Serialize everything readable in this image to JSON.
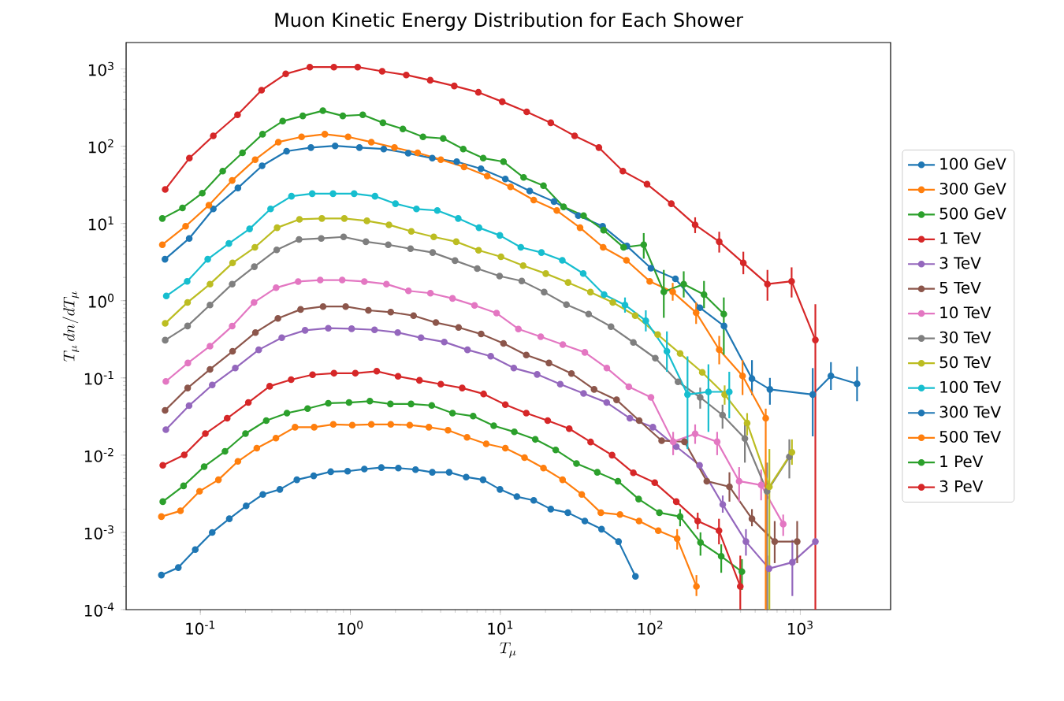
{
  "chart_data": {
    "type": "line",
    "title": "Muon Kinetic Energy Distribution for Each Shower",
    "xlabel": "T_\\mu",
    "ylabel": "T_\\mu \\, dn/dT_\\mu",
    "log": "xy",
    "marker": "circle",
    "line_style": "solid",
    "legend": "right",
    "xlim": [
      0.032,
      4000
    ],
    "ylim": [
      0.0001,
      2200
    ],
    "xticks": [
      {
        "value": 0.1,
        "label": "10$^{-1}$"
      },
      {
        "value": 1,
        "label": "10$^{0}$"
      },
      {
        "value": 10,
        "label": "10$^{1}$"
      },
      {
        "value": 100,
        "label": "10$^{2}$"
      },
      {
        "value": 1000,
        "label": "10$^{3}$"
      }
    ],
    "yticks": [
      {
        "value": 0.0001,
        "label": "10$^{-4}$"
      },
      {
        "value": 0.001,
        "label": "10$^{-3}$"
      },
      {
        "value": 0.01,
        "label": "10$^{-2}$"
      },
      {
        "value": 0.1,
        "label": "10$^{-1}$"
      },
      {
        "value": 1,
        "label": "10$^{0}$"
      },
      {
        "value": 10,
        "label": "10$^{1}$"
      },
      {
        "value": 100,
        "label": "10$^{2}$"
      },
      {
        "value": 1000,
        "label": "10$^{3}$"
      }
    ],
    "series": [
      {
        "name": "100 GeV",
        "color": "#1f77b4",
        "x": [
          0.055,
          0.0713,
          0.0925,
          0.12,
          0.156,
          0.202,
          0.261,
          0.339,
          0.44,
          0.57,
          0.74,
          0.959,
          1.24,
          1.61,
          2.09,
          2.72,
          3.52,
          4.56,
          5.92,
          7.67,
          9.95,
          12.9,
          16.7,
          21.7,
          28.2,
          36.6,
          47.3,
          61.4,
          79.6
        ],
        "values": [
          0.00028,
          0.00035,
          0.0006,
          0.001,
          0.0015,
          0.0022,
          0.0031,
          0.0036,
          0.0048,
          0.0054,
          0.0061,
          0.0062,
          0.0066,
          0.0069,
          0.0068,
          0.0065,
          0.006,
          0.006,
          0.0052,
          0.0048,
          0.0036,
          0.0029,
          0.0026,
          0.002,
          0.0018,
          0.0014,
          0.0011,
          0.00076,
          0.00027
        ]
      },
      {
        "name": "300 GeV",
        "color": "#ff7f0e",
        "x": [
          0.055,
          0.0737,
          0.0988,
          0.132,
          0.178,
          0.238,
          0.319,
          0.428,
          0.574,
          0.77,
          1.03,
          1.38,
          1.86,
          2.49,
          3.34,
          4.48,
          6.0,
          8.05,
          10.8,
          14.5,
          19.4,
          26.0,
          34.9,
          46.8,
          62.8,
          84.1,
          113,
          151,
          203
        ],
        "values": [
          0.0016,
          0.0019,
          0.0034,
          0.0048,
          0.0083,
          0.0123,
          0.0166,
          0.023,
          0.023,
          0.025,
          0.0245,
          0.025,
          0.025,
          0.0245,
          0.023,
          0.021,
          0.017,
          0.014,
          0.0123,
          0.0093,
          0.0068,
          0.0048,
          0.0031,
          0.0018,
          0.0017,
          0.0014,
          0.00105,
          0.00083,
          0.0002
        ],
        "errors": [
          null,
          null,
          null,
          null,
          null,
          null,
          null,
          null,
          null,
          null,
          null,
          null,
          null,
          null,
          null,
          null,
          null,
          null,
          null,
          null,
          null,
          null,
          null,
          null,
          null,
          null,
          null,
          [
            0.0006,
            0.0011
          ],
          [
            0.00015,
            0.00028
          ]
        ]
      },
      {
        "name": "500 GeV",
        "color": "#2ca02c",
        "x": [
          0.0562,
          0.0773,
          0.106,
          0.146,
          0.2,
          0.275,
          0.378,
          0.519,
          0.713,
          0.98,
          1.35,
          1.85,
          2.54,
          3.49,
          4.8,
          6.59,
          9.04,
          12.4,
          17.1,
          23.4,
          32.2,
          44.3,
          60.8,
          83.6,
          115,
          158,
          216,
          297,
          408
        ],
        "values": [
          0.0025,
          0.004,
          0.0071,
          0.0112,
          0.019,
          0.028,
          0.035,
          0.04,
          0.047,
          0.048,
          0.05,
          0.046,
          0.046,
          0.044,
          0.035,
          0.032,
          0.024,
          0.02,
          0.016,
          0.0117,
          0.0078,
          0.006,
          0.0046,
          0.0027,
          0.0018,
          0.0016,
          0.00074,
          0.00049,
          0.00031
        ],
        "errors": [
          null,
          null,
          null,
          null,
          null,
          null,
          null,
          null,
          null,
          null,
          null,
          null,
          null,
          null,
          null,
          null,
          null,
          null,
          null,
          null,
          null,
          null,
          null,
          null,
          null,
          [
            0.0012,
            0.002
          ],
          [
            0.0005,
            0.001
          ],
          [
            0.0003,
            0.0007
          ],
          [
            0.00018,
            0.00045
          ]
        ]
      },
      {
        "name": "1 TeV",
        "color": "#d62728",
        "x": [
          0.0562,
          0.0781,
          0.108,
          0.151,
          0.209,
          0.29,
          0.403,
          0.56,
          0.778,
          1.08,
          1.5,
          2.08,
          2.89,
          4.01,
          5.57,
          7.74,
          10.8,
          14.9,
          20.7,
          28.8,
          40.0,
          55.6,
          77.1,
          107,
          149,
          207,
          287,
          398
        ],
        "values": [
          0.0074,
          0.0101,
          0.019,
          0.03,
          0.048,
          0.078,
          0.095,
          0.11,
          0.115,
          0.115,
          0.122,
          0.105,
          0.093,
          0.083,
          0.074,
          0.062,
          0.045,
          0.035,
          0.028,
          0.022,
          0.0148,
          0.01,
          0.0059,
          0.0044,
          0.0025,
          0.0014,
          0.00105,
          0.0002
        ],
        "errors": [
          null,
          null,
          null,
          null,
          null,
          null,
          null,
          null,
          null,
          null,
          null,
          null,
          null,
          null,
          null,
          null,
          null,
          null,
          null,
          null,
          null,
          null,
          null,
          null,
          null,
          [
            0.0011,
            0.0018
          ],
          [
            0.0007,
            0.0015
          ],
          [
            0.0001,
            0.0005
          ]
        ]
      },
      {
        "name": "3 TeV",
        "color": "#9467bd",
        "x": [
          0.0589,
          0.0841,
          0.12,
          0.171,
          0.245,
          0.349,
          0.499,
          0.713,
          1.02,
          1.45,
          2.07,
          2.96,
          4.23,
          6.04,
          8.63,
          12.3,
          17.6,
          25.1,
          35.9,
          51.2,
          73.1,
          104,
          149,
          213,
          304,
          434,
          619,
          885,
          1260
        ],
        "values": [
          0.0214,
          0.0437,
          0.081,
          0.134,
          0.231,
          0.331,
          0.413,
          0.44,
          0.433,
          0.419,
          0.387,
          0.331,
          0.292,
          0.231,
          0.191,
          0.134,
          0.111,
          0.083,
          0.063,
          0.048,
          0.03,
          0.023,
          0.0129,
          0.0074,
          0.0023,
          0.00076,
          0.00034,
          0.00041,
          0.00076
        ],
        "errors": [
          null,
          null,
          null,
          null,
          null,
          null,
          null,
          null,
          null,
          null,
          null,
          null,
          null,
          null,
          null,
          null,
          null,
          null,
          null,
          null,
          null,
          null,
          null,
          null,
          [
            0.0018,
            0.003
          ],
          [
            0.0005,
            0.0011
          ],
          [
            0.0001,
            0.0005
          ],
          [
            0.00015,
            0.0008
          ],
          null
        ]
      },
      {
        "name": "5 TeV",
        "color": "#8c564b",
        "x": [
          0.0582,
          0.0823,
          0.116,
          0.164,
          0.233,
          0.329,
          0.466,
          0.658,
          0.931,
          1.32,
          1.86,
          2.64,
          3.72,
          5.27,
          7.45,
          10.5,
          14.9,
          21.1,
          29.8,
          42.2,
          59.6,
          84.3,
          119,
          169,
          238,
          337,
          476,
          675,
          953
        ],
        "values": [
          0.038,
          0.074,
          0.129,
          0.221,
          0.387,
          0.59,
          0.77,
          0.84,
          0.84,
          0.75,
          0.71,
          0.64,
          0.52,
          0.45,
          0.37,
          0.28,
          0.198,
          0.156,
          0.114,
          0.071,
          0.052,
          0.028,
          0.0154,
          0.0149,
          0.0046,
          0.0039,
          0.0015,
          0.00076,
          0.00076
        ],
        "errors": [
          null,
          null,
          null,
          null,
          null,
          null,
          null,
          null,
          null,
          null,
          null,
          null,
          null,
          null,
          null,
          null,
          null,
          null,
          null,
          null,
          null,
          null,
          null,
          null,
          null,
          [
            0.0025,
            0.006
          ],
          [
            0.0012,
            0.002
          ],
          [
            0.0004,
            0.0014
          ],
          [
            0.0004,
            0.0014
          ]
        ]
      },
      {
        "name": "10 TeV",
        "color": "#e377c2",
        "x": [
          0.0589,
          0.0826,
          0.116,
          0.163,
          0.228,
          0.32,
          0.449,
          0.63,
          0.883,
          1.24,
          1.74,
          2.44,
          3.42,
          4.8,
          6.73,
          9.44,
          13.2,
          18.6,
          26.1,
          36.6,
          51.3,
          71.9,
          101,
          142,
          199,
          279,
          391,
          548,
          769
        ],
        "values": [
          0.09,
          0.156,
          0.258,
          0.468,
          0.95,
          1.47,
          1.77,
          1.85,
          1.85,
          1.77,
          1.64,
          1.34,
          1.25,
          1.07,
          0.87,
          0.69,
          0.43,
          0.342,
          0.27,
          0.214,
          0.134,
          0.077,
          0.056,
          0.0149,
          0.0189,
          0.0149,
          0.0046,
          0.0041,
          0.00128
        ],
        "errors": [
          null,
          null,
          null,
          null,
          null,
          null,
          null,
          null,
          null,
          null,
          null,
          null,
          null,
          null,
          null,
          null,
          null,
          null,
          null,
          null,
          null,
          null,
          null,
          [
            0.01,
            0.02
          ],
          [
            0.014,
            0.025
          ],
          [
            0.01,
            0.02
          ],
          [
            0.0025,
            0.007
          ],
          [
            0.0026,
            0.0065
          ],
          [
            0.0009,
            0.0017
          ]
        ]
      },
      {
        "name": "30 TeV",
        "color": "#7f7f7f",
        "x": [
          0.0583,
          0.0822,
          0.116,
          0.163,
          0.229,
          0.323,
          0.455,
          0.64,
          0.902,
          1.27,
          1.79,
          2.52,
          3.54,
          4.99,
          7.02,
          9.89,
          13.9,
          19.6,
          27.6,
          38.8,
          54.7,
          77.1,
          108,
          153,
          215,
          303,
          427,
          600,
          845
        ],
        "values": [
          0.308,
          0.47,
          0.88,
          1.64,
          2.75,
          4.55,
          6.2,
          6.4,
          6.7,
          5.8,
          5.3,
          4.7,
          4.2,
          3.3,
          2.6,
          2.08,
          1.8,
          1.29,
          0.89,
          0.67,
          0.46,
          0.288,
          0.18,
          0.089,
          0.056,
          0.033,
          0.0164,
          0.0034,
          0.0095
        ],
        "errors": [
          null,
          null,
          null,
          null,
          null,
          null,
          null,
          null,
          null,
          null,
          null,
          null,
          null,
          null,
          null,
          null,
          null,
          null,
          null,
          null,
          null,
          null,
          null,
          null,
          [
            0.04,
            0.075
          ],
          [
            0.022,
            0.045
          ],
          [
            0.008,
            0.025
          ],
          [
            0.0001,
            0.008
          ],
          [
            0.005,
            0.016
          ]
        ]
      },
      {
        "name": "50 TeV",
        "color": "#bcbd22",
        "x": [
          0.0583,
          0.0822,
          0.116,
          0.164,
          0.231,
          0.325,
          0.458,
          0.646,
          0.912,
          1.29,
          1.81,
          2.55,
          3.6,
          5.08,
          7.16,
          10.1,
          14.2,
          20.1,
          28.3,
          39.9,
          56.2,
          79.3,
          112,
          158,
          222,
          313,
          442,
          622,
          879
        ],
        "values": [
          0.508,
          0.95,
          1.64,
          3.08,
          4.9,
          8.8,
          11.3,
          11.6,
          11.6,
          10.8,
          9.6,
          7.9,
          6.7,
          5.8,
          4.5,
          3.7,
          2.84,
          2.24,
          1.72,
          1.29,
          0.95,
          0.64,
          0.364,
          0.207,
          0.118,
          0.061,
          0.026,
          0.0039,
          0.0109
        ],
        "errors": [
          null,
          null,
          null,
          null,
          null,
          null,
          null,
          null,
          null,
          null,
          null,
          null,
          null,
          null,
          null,
          null,
          null,
          null,
          null,
          null,
          null,
          null,
          null,
          null,
          null,
          [
            0.045,
            0.08
          ],
          [
            0.018,
            0.035
          ],
          [
            0.0001,
            0.012
          ],
          [
            0.0075,
            0.016
          ]
        ]
      },
      {
        "name": "100 TeV",
        "color": "#17becf",
        "x": [
          0.0593,
          0.0817,
          0.112,
          0.155,
          0.213,
          0.294,
          0.405,
          0.557,
          0.767,
          1.06,
          1.46,
          2.0,
          2.76,
          3.8,
          5.24,
          7.21,
          9.93,
          13.7,
          18.8,
          25.9,
          35.7,
          49.2,
          67.8,
          93.3,
          129,
          177,
          244,
          336
        ],
        "values": [
          1.15,
          1.78,
          3.44,
          5.5,
          8.5,
          15.4,
          22.5,
          24.3,
          24.3,
          24.3,
          22.5,
          18.0,
          15.4,
          14.7,
          11.6,
          8.8,
          7.0,
          4.9,
          4.2,
          3.33,
          2.25,
          1.2,
          0.88,
          0.55,
          0.221,
          0.061,
          0.066,
          0.066
        ],
        "errors": [
          null,
          null,
          null,
          null,
          null,
          null,
          null,
          null,
          null,
          null,
          null,
          null,
          null,
          null,
          null,
          null,
          null,
          null,
          null,
          null,
          null,
          null,
          [
            0.7,
            1.1
          ],
          [
            0.4,
            0.75
          ],
          [
            0.12,
            0.4
          ],
          [
            0.012,
            0.19
          ],
          [
            0.02,
            0.15
          ],
          [
            0.03,
            0.12
          ]
        ]
      },
      {
        "name": "300 TeV",
        "color": "#1f77b4",
        "x": [
          0.0581,
          0.0843,
          0.122,
          0.178,
          0.258,
          0.376,
          0.546,
          0.792,
          1.15,
          1.67,
          2.43,
          3.52,
          5.12,
          7.43,
          10.8,
          15.7,
          22.8,
          33.1,
          48.1,
          69.8,
          101,
          147,
          214,
          310,
          476,
          627,
          1210,
          1600,
          2390
        ],
        "values": [
          3.44,
          6.4,
          15.4,
          28.8,
          55.7,
          86,
          96,
          101,
          96,
          92,
          81,
          70,
          63,
          51,
          37.7,
          26.3,
          19.2,
          12.6,
          9.2,
          5.1,
          2.63,
          1.92,
          0.81,
          0.47,
          0.098,
          0.071,
          0.061,
          0.106,
          0.084
        ],
        "errors": [
          null,
          null,
          null,
          null,
          null,
          null,
          null,
          null,
          null,
          null,
          null,
          null,
          null,
          null,
          null,
          null,
          null,
          null,
          null,
          null,
          null,
          null,
          null,
          null,
          [
            0.06,
            0.17
          ],
          [
            0.045,
            0.1
          ],
          [
            0.0175,
            0.134
          ],
          [
            0.07,
            0.16
          ],
          [
            0.05,
            0.14
          ]
        ]
      },
      {
        "name": "500 TeV",
        "color": "#ff7f0e",
        "x": [
          0.0558,
          0.0798,
          0.114,
          0.163,
          0.232,
          0.331,
          0.473,
          0.676,
          0.966,
          1.38,
          1.97,
          2.81,
          4.01,
          5.73,
          8.18,
          11.7,
          16.7,
          23.8,
          34.0,
          48.5,
          69.3,
          99.1,
          141,
          202,
          288,
          412,
          588
        ],
        "values": [
          5.3,
          9.2,
          17.2,
          36,
          67,
          113,
          132,
          143,
          132,
          113,
          96,
          82,
          67,
          54,
          41,
          29.8,
          20.1,
          14.7,
          8.8,
          4.9,
          3.33,
          1.78,
          1.3,
          0.7,
          0.232,
          0.106,
          0.03
        ],
        "errors": [
          null,
          null,
          null,
          null,
          null,
          null,
          null,
          null,
          null,
          null,
          null,
          null,
          null,
          null,
          null,
          null,
          null,
          null,
          null,
          null,
          null,
          null,
          [
            1.0,
            1.7
          ],
          [
            0.5,
            0.95
          ],
          [
            0.15,
            0.35
          ],
          [
            0.06,
            0.17
          ],
          [
            0.0001,
            0.04
          ]
        ]
      },
      {
        "name": "1 PeV",
        "color": "#2ca02c",
        "x": [
          0.0558,
          0.076,
          0.103,
          0.141,
          0.191,
          0.26,
          0.354,
          0.482,
          0.656,
          0.891,
          1.21,
          1.65,
          2.24,
          3.05,
          4.16,
          5.66,
          7.69,
          10.5,
          14.3,
          19.4,
          26.4,
          35.9,
          48.8,
          66.4,
          90.4,
          123,
          167,
          228,
          309
        ],
        "values": [
          11.6,
          15.9,
          24.7,
          47.6,
          82,
          143,
          211,
          247,
          288,
          247,
          255,
          201,
          167,
          132,
          126,
          92,
          70,
          63,
          39.4,
          30.8,
          16.4,
          12.6,
          8.2,
          4.9,
          5.3,
          1.3,
          1.64,
          1.2,
          0.67
        ],
        "errors": [
          null,
          null,
          null,
          null,
          null,
          null,
          null,
          null,
          null,
          null,
          null,
          null,
          null,
          null,
          null,
          null,
          null,
          null,
          null,
          null,
          null,
          null,
          null,
          null,
          [
            3.5,
            7.5
          ],
          [
            0.6,
            2.5
          ],
          [
            1.1,
            2.4
          ],
          [
            0.8,
            1.8
          ],
          [
            0.2,
            1.1
          ]
        ]
      },
      {
        "name": "3 PeV",
        "color": "#d62728",
        "x": [
          0.0583,
          0.0845,
          0.122,
          0.177,
          0.256,
          0.371,
          0.537,
          0.777,
          1.12,
          1.63,
          2.36,
          3.41,
          4.93,
          7.14,
          10.3,
          15.0,
          21.7,
          31.3,
          45.4,
          65.6,
          95.1,
          138,
          199,
          288,
          417,
          604,
          875,
          1260
        ],
        "values": [
          27.5,
          70,
          136,
          255,
          531,
          863,
          1057,
          1057,
          1057,
          933,
          836,
          714,
          603,
          499,
          377,
          279,
          201,
          136,
          96,
          47.6,
          32.2,
          18.0,
          9.6,
          5.8,
          3.08,
          1.64,
          1.78,
          0.31
        ],
        "errors": [
          null,
          null,
          null,
          null,
          null,
          null,
          null,
          null,
          null,
          null,
          null,
          null,
          null,
          null,
          null,
          null,
          null,
          null,
          null,
          null,
          null,
          null,
          [
            7.5,
            12
          ],
          [
            4.2,
            7.8
          ],
          [
            2.2,
            4.3
          ],
          [
            1.0,
            2.5
          ],
          [
            1.1,
            2.7
          ],
          [
            0.0001,
            0.9
          ]
        ]
      }
    ]
  }
}
